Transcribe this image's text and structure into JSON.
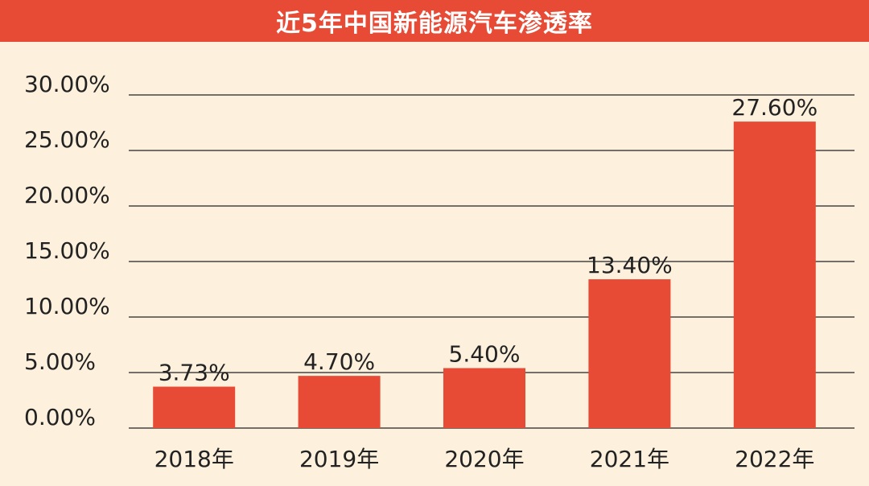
{
  "chart_data": {
    "type": "bar",
    "title": "近5年中国新能源汽车渗透率",
    "categories": [
      "2018年",
      "2019年",
      "2020年",
      "2021年",
      "2022年"
    ],
    "values": [
      3.73,
      4.7,
      5.4,
      13.4,
      27.6
    ],
    "data_labels": [
      "3.73%",
      "4.70%",
      "5.40%",
      "13.40%",
      "27.60%"
    ],
    "y_ticks": [
      0,
      5,
      10,
      15,
      20,
      25,
      30
    ],
    "y_tick_labels": [
      "0.00%",
      "5.00%",
      "10.00%",
      "15.00%",
      "20.00%",
      "25.00%",
      "30.00%"
    ],
    "ylim": [
      0,
      30
    ],
    "grid": true,
    "legend": "none",
    "colors": {
      "bar": "#e74b35",
      "banner": "#e74b35",
      "background": "#fdf1dd",
      "grid": "#222222"
    }
  }
}
